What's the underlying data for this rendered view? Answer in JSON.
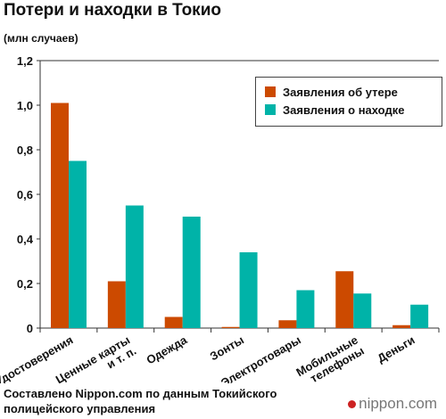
{
  "header": {
    "title": "Потери и находки в Токио",
    "unit": "(млн случаев)"
  },
  "footer": {
    "source": "Составлено Nippon.com по данным Токийского полицейского управления",
    "brand": "nippon.com"
  },
  "colors": {
    "lost": "#cc4a00",
    "found": "#00b3a8",
    "brand_dot": "#cc2222"
  },
  "legend": {
    "items": [
      {
        "label": "Заявления об утере",
        "color": "#cc4a00"
      },
      {
        "label": "Заявления о находке",
        "color": "#00b3a8"
      }
    ]
  },
  "chart_data": {
    "type": "bar",
    "title": "Потери и находки в Токио",
    "ylabel": "(млн случаев)",
    "xlabel": "",
    "ylim": [
      0,
      1.2
    ],
    "yticks": [
      "0",
      "0,2",
      "0,4",
      "0,6",
      "0,8",
      "1,0",
      "1,2"
    ],
    "grid": false,
    "legend_position": "top-right",
    "categories": [
      [
        "Удостоверения"
      ],
      [
        "Ценные карты",
        "и т. п."
      ],
      [
        "Одежда"
      ],
      [
        "Зонты"
      ],
      [
        "Электротовары"
      ],
      [
        "Мобильные",
        "телефоны"
      ],
      [
        "Деньги"
      ]
    ],
    "series": [
      {
        "name": "Заявления об утере",
        "color": "#cc4a00",
        "values": [
          1.01,
          0.21,
          0.05,
          0.005,
          0.035,
          0.255,
          0.013
        ]
      },
      {
        "name": "Заявления о находке",
        "color": "#00b3a8",
        "values": [
          0.75,
          0.55,
          0.5,
          0.34,
          0.17,
          0.155,
          0.105
        ]
      }
    ]
  }
}
